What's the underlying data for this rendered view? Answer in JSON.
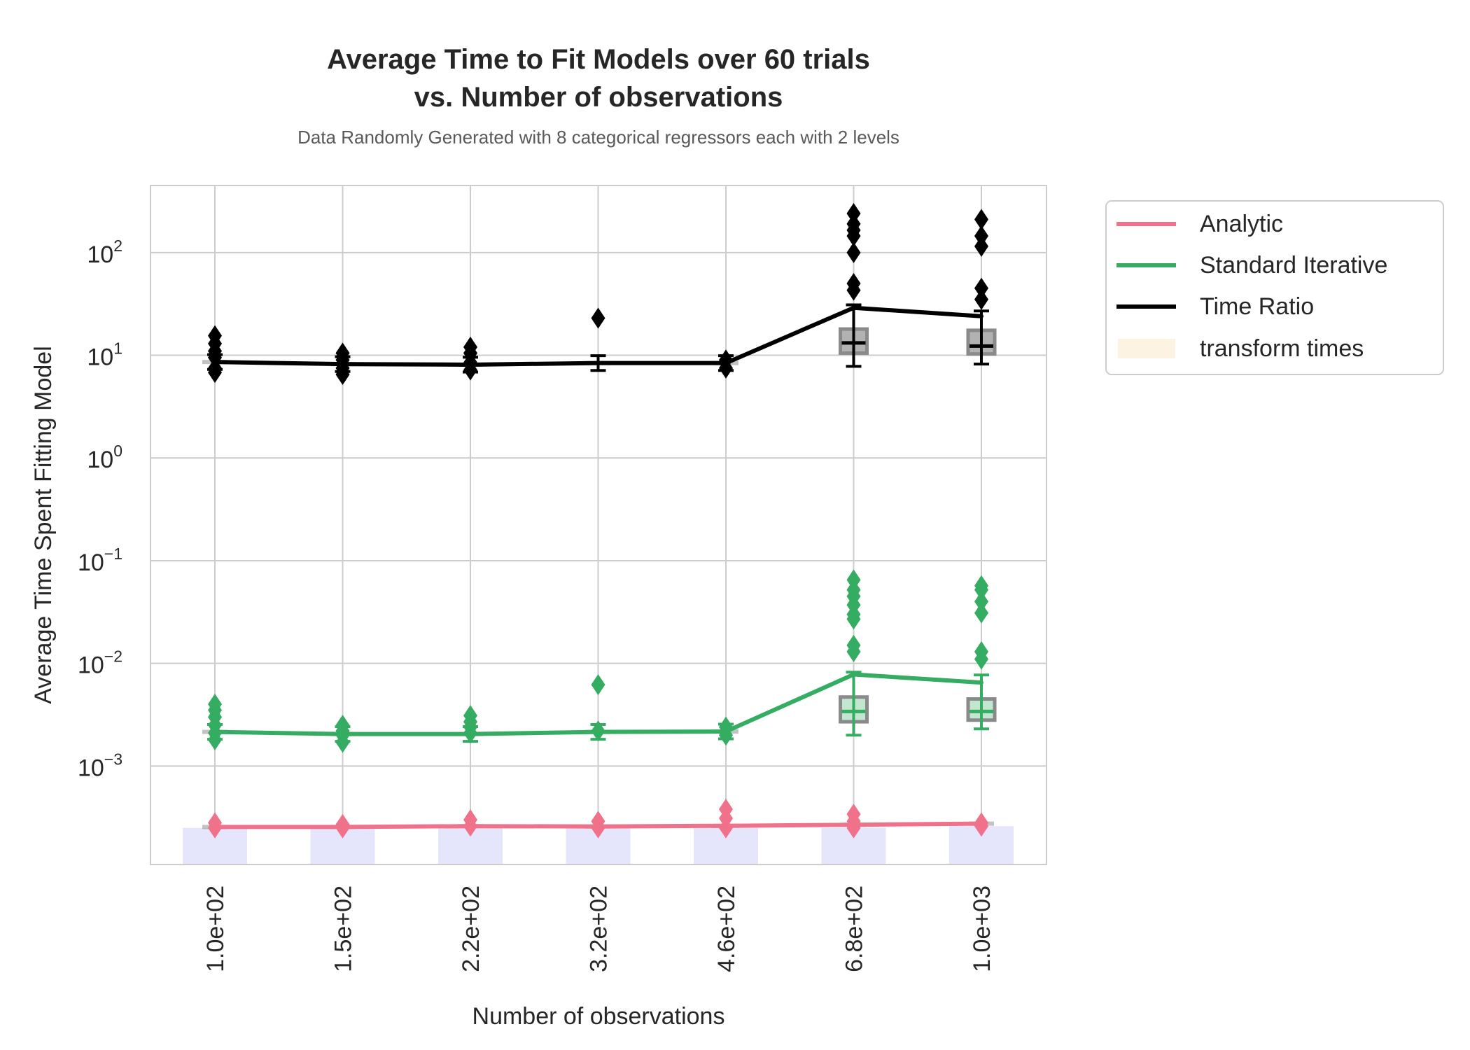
{
  "chart_data": {
    "type": "line",
    "title_line1": "Average Time to Fit Models over 60 trials",
    "title_line2": "vs. Number of observations",
    "subtitle": "Data Randomly Generated with 8 categorical regressors each with 2 levels",
    "xlabel": "Number of observations",
    "ylabel": "Average Time Spent Fitting Model",
    "y_scale": "log",
    "ylim": [
      0.00011,
      450
    ],
    "grid": true,
    "legend_placement": "outside-top-right",
    "categories": [
      "1.0e+02",
      "1.5e+02",
      "2.2e+02",
      "3.2e+02",
      "4.6e+02",
      "6.8e+02",
      "1.0e+03"
    ],
    "y_ticks": [
      {
        "base": "10",
        "exp": "−3",
        "value": 0.001
      },
      {
        "base": "10",
        "exp": "−2",
        "value": 0.01
      },
      {
        "base": "10",
        "exp": "−1",
        "value": 0.1
      },
      {
        "base": "10",
        "exp": "0",
        "value": 1
      },
      {
        "base": "10",
        "exp": "1",
        "value": 10
      },
      {
        "base": "10",
        "exp": "2",
        "value": 100
      }
    ],
    "series": [
      {
        "name": "Analytic",
        "color": "#f0718a",
        "values": [
          0.000255,
          0.000255,
          0.00026,
          0.000258,
          0.000262,
          0.000268,
          0.000275
        ],
        "outliers": [
          [
            0.00028,
            0.00025
          ],
          [
            0.00027,
            0.00025
          ],
          [
            0.0003,
            0.00026
          ],
          [
            0.00029,
            0.00025
          ],
          [
            0.00038,
            0.00031,
            0.00025
          ],
          [
            0.00034,
            0.00029,
            0.00025
          ],
          [
            0.00028,
            0.00026
          ]
        ]
      },
      {
        "name": "Standard Iterative",
        "color": "#34ad62",
        "values": [
          0.00215,
          0.00205,
          0.00205,
          0.00215,
          0.00217,
          0.0078,
          0.0065
        ],
        "box": [
          null,
          null,
          null,
          null,
          null,
          {
            "q1": 0.0027,
            "median": 0.0034,
            "q3": 0.0047,
            "wlow": 0.002,
            "whigh": 0.0082
          },
          {
            "q1": 0.0028,
            "median": 0.0034,
            "q3": 0.0045,
            "wlow": 0.0023,
            "whigh": 0.0077
          }
        ],
        "outliers": [
          [
            0.004,
            0.0035,
            0.003,
            0.0025,
            0.0021,
            0.0018
          ],
          [
            0.0025,
            0.0022,
            0.002,
            0.0017
          ],
          [
            0.0031,
            0.0027,
            0.0024,
            0.0021
          ],
          [
            0.0062,
            0.0022
          ],
          [
            0.0024,
            0.002
          ],
          [
            0.065,
            0.052,
            0.045,
            0.037,
            0.03,
            0.027,
            0.015,
            0.013
          ],
          [
            0.057,
            0.052,
            0.04,
            0.031,
            0.013,
            0.011
          ]
        ]
      },
      {
        "name": "Time Ratio",
        "color": "#000000",
        "values": [
          8.6,
          8.2,
          8.1,
          8.4,
          8.4,
          29,
          24
        ],
        "box": [
          null,
          null,
          null,
          null,
          null,
          {
            "q1": 10.5,
            "median": 13.2,
            "q3": 18,
            "wlow": 7.8,
            "whigh": 31
          },
          {
            "q1": 10.3,
            "median": 12.3,
            "q3": 17.5,
            "wlow": 8.2,
            "whigh": 27
          }
        ],
        "outliers": [
          [
            15.5,
            13,
            11,
            9.5,
            7.5,
            6.8
          ],
          [
            10.5,
            9,
            7.5,
            6.5
          ],
          [
            12,
            10.5,
            8.5,
            7.2
          ],
          [
            23
          ],
          [
            9,
            7.5
          ],
          [
            240,
            190,
            165,
            145,
            100,
            50,
            43
          ],
          [
            210,
            145,
            115,
            45,
            35
          ]
        ]
      }
    ],
    "legend": [
      {
        "label": "Analytic",
        "color": "#f0718a",
        "kind": "line"
      },
      {
        "label": "Standard Iterative",
        "color": "#34ad62",
        "kind": "line"
      },
      {
        "label": "Time Ratio",
        "color": "#000000",
        "kind": "line"
      },
      {
        "label": "transform times",
        "color": "#fdf3e3",
        "kind": "patch"
      }
    ],
    "transform_times": {
      "color": "#e5e5fc",
      "values": [
        0.00025,
        0.00025,
        0.00025,
        0.00025,
        0.00025,
        0.00025,
        0.00026
      ]
    }
  }
}
